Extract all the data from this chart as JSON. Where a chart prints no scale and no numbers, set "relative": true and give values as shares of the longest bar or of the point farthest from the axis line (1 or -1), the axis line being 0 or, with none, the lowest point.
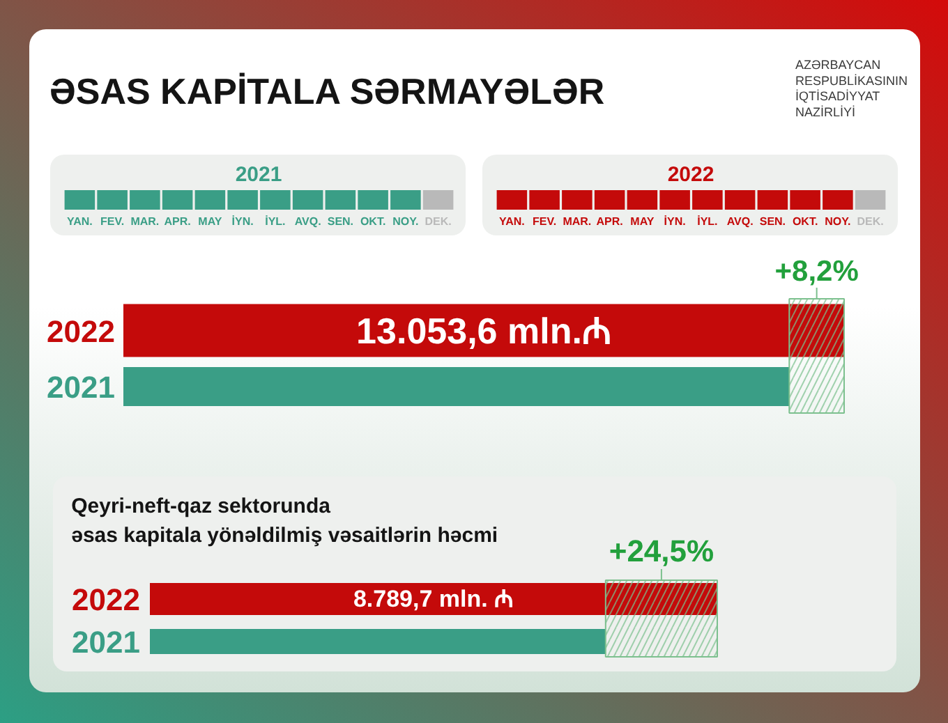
{
  "chart_data": [
    {
      "type": "other",
      "title": "ƏSAS KAPİTALA SƏRMAYƏLƏR",
      "annotations": [
        "AZƏRBAYCAN\nRESPUBLİKASININ\nİQTİSADİYYAT\nNAZİRLİYİ"
      ]
    },
    {
      "type": "bar",
      "relative": true,
      "title": "2021",
      "categories": [
        "YAN.",
        "FEV.",
        "MAR.",
        "APR.",
        "MAY",
        "İYN.",
        "İYL.",
        "AVQ.",
        "SEN.",
        "OKT.",
        "NOY.",
        "DEK."
      ],
      "values": [
        1,
        1,
        1,
        1,
        1,
        1,
        1,
        1,
        1,
        1,
        1,
        1
      ],
      "colors": [
        "#3a9e86",
        "#3a9e86",
        "#3a9e86",
        "#3a9e86",
        "#3a9e86",
        "#3a9e86",
        "#3a9e86",
        "#3a9e86",
        "#3a9e86",
        "#3a9e86",
        "#3a9e86",
        "#b9b9b9"
      ]
    },
    {
      "type": "bar",
      "relative": true,
      "title": "2022",
      "categories": [
        "YAN.",
        "FEV.",
        "MAR.",
        "APR.",
        "MAY",
        "İYN.",
        "İYL.",
        "AVQ.",
        "SEN.",
        "OKT.",
        "NOY.",
        "DEK."
      ],
      "values": [
        1,
        1,
        1,
        1,
        1,
        1,
        1,
        1,
        1,
        1,
        1,
        1
      ],
      "colors": [
        "#c40a0a",
        "#c40a0a",
        "#c40a0a",
        "#c40a0a",
        "#c40a0a",
        "#c40a0a",
        "#c40a0a",
        "#c40a0a",
        "#c40a0a",
        "#c40a0a",
        "#c40a0a",
        "#b9b9b9"
      ]
    },
    {
      "type": "bar",
      "orientation": "horizontal",
      "categories": [
        "2022",
        "2021"
      ],
      "values": [
        13053.6,
        12060
      ],
      "colors": [
        "#c40a0a",
        "#3a9e86"
      ],
      "value_labels": [
        "13.053,6 mln.₼",
        null
      ],
      "bands": [
        {
          "axis": "x",
          "from": 12060,
          "to": 13053.6,
          "label": "+8,2%",
          "color": "#7cc08e"
        }
      ]
    },
    {
      "type": "bar",
      "orientation": "horizontal",
      "title": "Qeyri-neft-qaz sektorunda\nəsas kapitala yönəldilmiş vəsaitlərin həcmi",
      "categories": [
        "2022",
        "2021"
      ],
      "values": [
        8789.7,
        7060
      ],
      "colors": [
        "#c40a0a",
        "#3a9e86"
      ],
      "value_labels": [
        "8.789,7 mln. ₼",
        null
      ],
      "bands": [
        {
          "axis": "x",
          "from": 7060,
          "to": 8789.7,
          "label": "+24,5%",
          "color": "#7cc08e"
        }
      ]
    }
  ]
}
